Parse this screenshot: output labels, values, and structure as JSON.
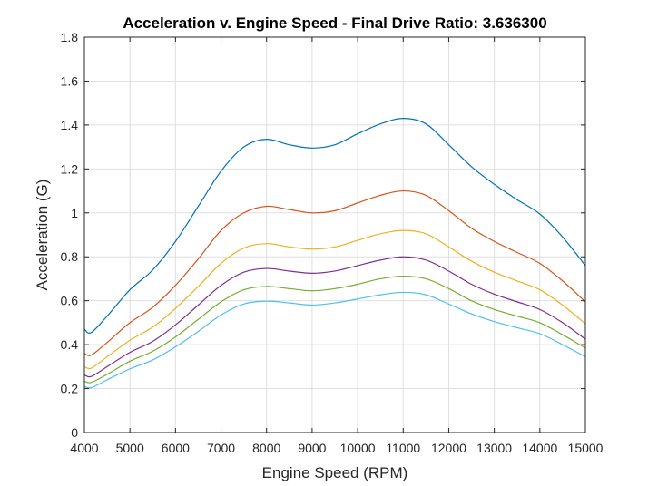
{
  "chart_data": {
    "type": "line",
    "title": "Acceleration v. Engine Speed - Final Drive Ratio: 3.636300",
    "xlabel": "Engine Speed (RPM)",
    "ylabel": "Acceleration (G)",
    "xlim": [
      4000,
      15000
    ],
    "ylim": [
      0,
      1.8
    ],
    "xticks": [
      4000,
      5000,
      6000,
      7000,
      8000,
      9000,
      10000,
      11000,
      12000,
      13000,
      14000,
      15000
    ],
    "yticks": [
      0,
      0.2,
      0.4,
      0.6,
      0.8,
      1,
      1.2,
      1.4,
      1.6,
      1.8
    ],
    "xtick_labels": [
      "4000",
      "5000",
      "6000",
      "7000",
      "8000",
      "9000",
      "10000",
      "11000",
      "12000",
      "13000",
      "14000",
      "15000"
    ],
    "ytick_labels": [
      "0",
      "0.2",
      "0.4",
      "0.6",
      "0.8",
      "1",
      "1.2",
      "1.4",
      "1.6",
      "1.8"
    ],
    "grid": true,
    "x": [
      4000,
      4150,
      4500,
      5000,
      5500,
      6000,
      6500,
      7000,
      7500,
      8000,
      8500,
      9000,
      9500,
      10000,
      10500,
      11000,
      11500,
      12000,
      12500,
      13000,
      13500,
      14000,
      14500,
      15000
    ],
    "series": [
      {
        "color": "#0072BD",
        "values": [
          0.47,
          0.455,
          0.53,
          0.65,
          0.74,
          0.87,
          1.03,
          1.19,
          1.3,
          1.335,
          1.31,
          1.295,
          1.31,
          1.36,
          1.405,
          1.43,
          1.405,
          1.31,
          1.21,
          1.13,
          1.06,
          0.995,
          0.89,
          0.76
        ]
      },
      {
        "color": "#D95319",
        "values": [
          0.36,
          0.352,
          0.41,
          0.5,
          0.57,
          0.67,
          0.79,
          0.92,
          1.0,
          1.03,
          1.015,
          1.0,
          1.01,
          1.045,
          1.08,
          1.1,
          1.08,
          1.01,
          0.93,
          0.87,
          0.82,
          0.77,
          0.69,
          0.595
        ]
      },
      {
        "color": "#EDB120",
        "values": [
          0.3,
          0.293,
          0.345,
          0.42,
          0.48,
          0.565,
          0.665,
          0.77,
          0.84,
          0.86,
          0.845,
          0.835,
          0.845,
          0.875,
          0.905,
          0.92,
          0.905,
          0.845,
          0.78,
          0.73,
          0.69,
          0.65,
          0.58,
          0.495
        ]
      },
      {
        "color": "#7E2F8E",
        "values": [
          0.262,
          0.255,
          0.3,
          0.365,
          0.415,
          0.49,
          0.58,
          0.67,
          0.73,
          0.747,
          0.735,
          0.725,
          0.735,
          0.76,
          0.785,
          0.8,
          0.785,
          0.735,
          0.675,
          0.63,
          0.595,
          0.56,
          0.5,
          0.425
        ]
      },
      {
        "color": "#77AC30",
        "values": [
          0.234,
          0.228,
          0.265,
          0.325,
          0.37,
          0.435,
          0.515,
          0.595,
          0.65,
          0.665,
          0.655,
          0.645,
          0.655,
          0.675,
          0.7,
          0.712,
          0.7,
          0.655,
          0.6,
          0.56,
          0.53,
          0.5,
          0.445,
          0.385
        ]
      },
      {
        "color": "#4DBEEE",
        "values": [
          0.21,
          0.204,
          0.24,
          0.29,
          0.33,
          0.39,
          0.46,
          0.535,
          0.585,
          0.598,
          0.59,
          0.58,
          0.59,
          0.608,
          0.627,
          0.638,
          0.627,
          0.585,
          0.54,
          0.505,
          0.477,
          0.45,
          0.4,
          0.345
        ]
      }
    ]
  }
}
